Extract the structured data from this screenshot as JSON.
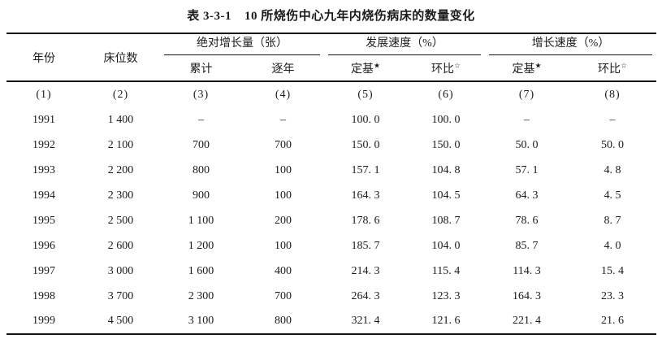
{
  "title": {
    "table_no": "表 3-3-1",
    "text": "10 所烧伤中心九年内烧伤病床的数量变化"
  },
  "table": {
    "col_year": "年份",
    "col_beds": "床位数",
    "groups": [
      {
        "label": "绝对增长量（张）",
        "sub": [
          {
            "label": "累计",
            "sup": ""
          },
          {
            "label": "逐年",
            "sup": ""
          }
        ]
      },
      {
        "label": "发展速度（%）",
        "sub": [
          {
            "label": "定基",
            "sup": "★"
          },
          {
            "label": "环比",
            "sup": "☆"
          }
        ]
      },
      {
        "label": "增长速度（%）",
        "sub": [
          {
            "label": "定基",
            "sup": "★"
          },
          {
            "label": "环比",
            "sup": "☆"
          }
        ]
      }
    ],
    "index_row": [
      "(1)",
      "(2)",
      "(3)",
      "(4)",
      "(5)",
      "(6)",
      "(7)",
      "(8)"
    ],
    "rows": [
      [
        "1991",
        "1 400",
        "–",
        "–",
        "100. 0",
        "100. 0",
        "–",
        "–"
      ],
      [
        "1992",
        "2 100",
        "700",
        "700",
        "150. 0",
        "150. 0",
        "50. 0",
        "50. 0"
      ],
      [
        "1993",
        "2 200",
        "800",
        "100",
        "157. 1",
        "104. 8",
        "57. 1",
        "4. 8"
      ],
      [
        "1994",
        "2 300",
        "900",
        "100",
        "164. 3",
        "104. 5",
        "64. 3",
        "4. 5"
      ],
      [
        "1995",
        "2 500",
        "1 100",
        "200",
        "178. 6",
        "108. 7",
        "78. 6",
        "8. 7"
      ],
      [
        "1996",
        "2 600",
        "1 200",
        "100",
        "185. 7",
        "104. 0",
        "85. 7",
        "4. 0"
      ],
      [
        "1997",
        "3 000",
        "1 600",
        "400",
        "214. 3",
        "115. 4",
        "114. 3",
        "15. 4"
      ],
      [
        "1998",
        "3 700",
        "2 300",
        "700",
        "264. 3",
        "123. 3",
        "164. 3",
        "23. 3"
      ],
      [
        "1999",
        "4 500",
        "3 100",
        "800",
        "321. 4",
        "121. 6",
        "221. 4",
        "21. 6"
      ]
    ]
  }
}
